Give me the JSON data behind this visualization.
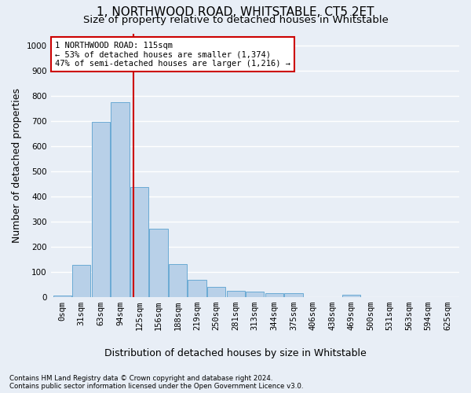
{
  "title1": "1, NORTHWOOD ROAD, WHITSTABLE, CT5 2ET",
  "title2": "Size of property relative to detached houses in Whitstable",
  "xlabel": "Distribution of detached houses by size in Whitstable",
  "ylabel": "Number of detached properties",
  "footer1": "Contains HM Land Registry data © Crown copyright and database right 2024.",
  "footer2": "Contains public sector information licensed under the Open Government Licence v3.0.",
  "bar_labels": [
    "0sqm",
    "31sqm",
    "63sqm",
    "94sqm",
    "125sqm",
    "156sqm",
    "188sqm",
    "219sqm",
    "250sqm",
    "281sqm",
    "313sqm",
    "344sqm",
    "375sqm",
    "406sqm",
    "438sqm",
    "469sqm",
    "500sqm",
    "531sqm",
    "563sqm",
    "594sqm",
    "625sqm"
  ],
  "bar_values": [
    5,
    127,
    697,
    775,
    438,
    272,
    132,
    68,
    40,
    25,
    22,
    13,
    13,
    0,
    0,
    8,
    0,
    0,
    0,
    0,
    0
  ],
  "bar_color": "#b8d0e8",
  "bar_edge_color": "#6aaad4",
  "vline_x": 3.68,
  "annotation_text": "1 NORTHWOOD ROAD: 115sqm\n← 53% of detached houses are smaller (1,374)\n47% of semi-detached houses are larger (1,216) →",
  "annotation_box_color": "#ffffff",
  "annotation_box_edge": "#cc0000",
  "vline_color": "#cc0000",
  "ylim": [
    0,
    1050
  ],
  "yticks": [
    0,
    100,
    200,
    300,
    400,
    500,
    600,
    700,
    800,
    900,
    1000
  ],
  "bg_color": "#e8eef6",
  "plot_bg": "#e8eef6",
  "grid_color": "#ffffff",
  "title_fontsize": 11,
  "subtitle_fontsize": 9.5,
  "tick_fontsize": 7.5,
  "ylabel_fontsize": 9,
  "xlabel_fontsize": 9,
  "ann_fontsize": 7.5
}
